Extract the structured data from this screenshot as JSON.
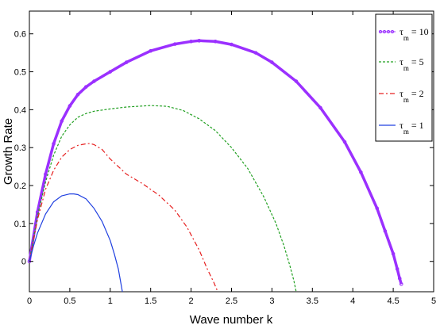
{
  "chart_data": {
    "type": "line",
    "xlabel": "Wave number k",
    "ylabel": "Growth Rate",
    "xlim": [
      0,
      5
    ],
    "ylim": [
      -0.08,
      0.66
    ],
    "xticks": [
      0,
      0.5,
      1,
      1.5,
      2,
      2.5,
      3,
      3.5,
      4,
      4.5,
      5
    ],
    "xtick_labels": [
      "0",
      "0.5",
      "1",
      "1.5",
      "2",
      "2.5",
      "3",
      "3.5",
      "4",
      "4.5",
      "5"
    ],
    "yticks": [
      0,
      0.1,
      0.2,
      0.3,
      0.4,
      0.5,
      0.6
    ],
    "ytick_labels": [
      "0",
      "0.1",
      "0.2",
      "0.3",
      "0.4",
      "0.5",
      "0.6"
    ],
    "grid": false,
    "legend_position": "top-right",
    "series": [
      {
        "tau": "10",
        "color": "#9b30ff",
        "style": "circles",
        "x": [
          0,
          0.1,
          0.2,
          0.3,
          0.4,
          0.5,
          0.6,
          0.7,
          0.8,
          1.0,
          1.2,
          1.5,
          1.8,
          2.0,
          2.1,
          2.3,
          2.5,
          2.8,
          3.0,
          3.3,
          3.6,
          3.9,
          4.1,
          4.3,
          4.4,
          4.5,
          4.55,
          4.58,
          4.6
        ],
        "y": [
          0,
          0.13,
          0.23,
          0.31,
          0.37,
          0.41,
          0.44,
          0.46,
          0.475,
          0.5,
          0.525,
          0.555,
          0.573,
          0.58,
          0.582,
          0.58,
          0.572,
          0.55,
          0.525,
          0.475,
          0.405,
          0.315,
          0.235,
          0.14,
          0.08,
          0.02,
          -0.02,
          -0.045,
          -0.06
        ]
      },
      {
        "tau": "5",
        "color": "#22a022",
        "style": "dotted",
        "x": [
          0,
          0.1,
          0.2,
          0.3,
          0.4,
          0.5,
          0.6,
          0.7,
          0.8,
          1.0,
          1.2,
          1.5,
          1.7,
          1.9,
          2.1,
          2.3,
          2.5,
          2.7,
          2.9,
          3.05,
          3.15,
          3.22,
          3.27,
          3.3
        ],
        "y": [
          0,
          0.12,
          0.21,
          0.28,
          0.33,
          0.36,
          0.38,
          0.39,
          0.396,
          0.402,
          0.407,
          0.411,
          0.409,
          0.398,
          0.376,
          0.345,
          0.3,
          0.245,
          0.17,
          0.1,
          0.04,
          -0.01,
          -0.05,
          -0.08
        ]
      },
      {
        "tau": "2",
        "color": "#e62020",
        "style": "dashdot",
        "x": [
          0,
          0.1,
          0.2,
          0.3,
          0.4,
          0.5,
          0.6,
          0.7,
          0.75,
          0.8,
          0.9,
          1.0,
          1.2,
          1.4,
          1.6,
          1.8,
          1.95,
          2.1,
          2.2,
          2.28,
          2.33
        ],
        "y": [
          0,
          0.11,
          0.19,
          0.24,
          0.275,
          0.295,
          0.306,
          0.31,
          0.311,
          0.308,
          0.295,
          0.27,
          0.23,
          0.205,
          0.175,
          0.135,
          0.09,
          0.03,
          -0.02,
          -0.055,
          -0.08
        ]
      },
      {
        "tau": "1",
        "color": "#2040e0",
        "style": "solid",
        "x": [
          0,
          0.05,
          0.1,
          0.2,
          0.3,
          0.4,
          0.5,
          0.55,
          0.6,
          0.7,
          0.8,
          0.9,
          1.0,
          1.05,
          1.1,
          1.15
        ],
        "y": [
          0,
          0.04,
          0.075,
          0.125,
          0.157,
          0.173,
          0.178,
          0.178,
          0.176,
          0.165,
          0.14,
          0.105,
          0.055,
          0.02,
          -0.02,
          -0.08
        ]
      }
    ]
  },
  "legend": {
    "entries": [
      {
        "symbol": "τ",
        "sub": "m",
        "value": "= 10"
      },
      {
        "symbol": "τ",
        "sub": "m",
        "value": "= 5"
      },
      {
        "symbol": "τ",
        "sub": "m",
        "value": "= 2"
      },
      {
        "symbol": "τ",
        "sub": "m",
        "value": "= 1"
      }
    ]
  }
}
